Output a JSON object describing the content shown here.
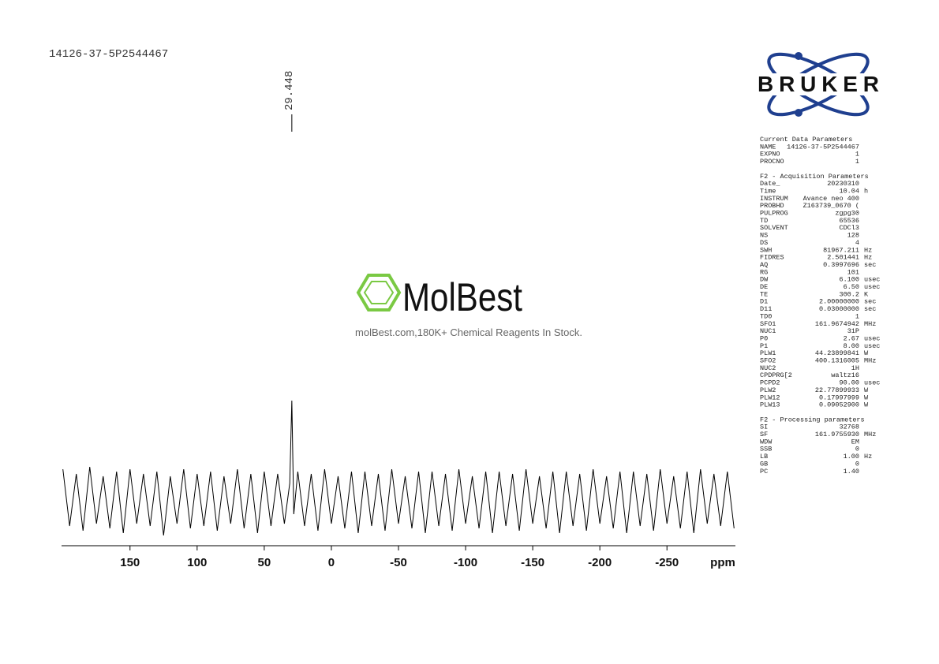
{
  "header": {
    "sample": "14126-37-5P2544467"
  },
  "logo": "BRUKER",
  "watermark": {
    "brand": "MolBest",
    "tagline": "molBest.com,180K+ Chemical Reagents In Stock."
  },
  "parameters": {
    "groups": [
      {
        "title": "Current Data Parameters",
        "rows": [
          {
            "name": "NAME",
            "value": "14126-37-5P2544467"
          },
          {
            "name": "EXPNO",
            "value": "1"
          },
          {
            "name": "PROCNO",
            "value": "1"
          }
        ]
      },
      {
        "title": "F2 - Acquisition Parameters",
        "rows": [
          {
            "name": "Date_",
            "value": "20230310"
          },
          {
            "name": "Time",
            "value": "10.04",
            "unit": "h"
          },
          {
            "name": "INSTRUM",
            "value": "Avance neo 400"
          },
          {
            "name": "PROBHD",
            "value": "Z163739_0670 ("
          },
          {
            "name": "PULPROG",
            "value": "zgpg30"
          },
          {
            "name": "TD",
            "value": "65536"
          },
          {
            "name": "SOLVENT",
            "value": "CDCl3"
          },
          {
            "name": "NS",
            "value": "128"
          },
          {
            "name": "DS",
            "value": "4"
          },
          {
            "name": "SWH",
            "value": "81967.211",
            "unit": "Hz"
          },
          {
            "name": "FIDRES",
            "value": "2.501441",
            "unit": "Hz"
          },
          {
            "name": "AQ",
            "value": "0.3997696",
            "unit": "sec"
          },
          {
            "name": "RG",
            "value": "101"
          },
          {
            "name": "DW",
            "value": "6.100",
            "unit": "usec"
          },
          {
            "name": "DE",
            "value": "6.50",
            "unit": "usec"
          },
          {
            "name": "TE",
            "value": "300.2",
            "unit": "K"
          },
          {
            "name": "D1",
            "value": "2.00000000",
            "unit": "sec"
          },
          {
            "name": "D11",
            "value": "0.03000000",
            "unit": "sec"
          },
          {
            "name": "TD0",
            "value": "1"
          },
          {
            "name": "SFO1",
            "value": "161.9674942",
            "unit": "MHz"
          },
          {
            "name": "NUC1",
            "value": "31P"
          },
          {
            "name": "P0",
            "value": "2.67",
            "unit": "usec"
          },
          {
            "name": "P1",
            "value": "8.00",
            "unit": "usec"
          },
          {
            "name": "PLW1",
            "value": "44.23899841",
            "unit": "W"
          },
          {
            "name": "SFO2",
            "value": "400.1316005",
            "unit": "MHz"
          },
          {
            "name": "NUC2",
            "value": "1H"
          },
          {
            "name": "CPDPRG[2",
            "value": "waltz16"
          },
          {
            "name": "PCPD2",
            "value": "90.00",
            "unit": "usec"
          },
          {
            "name": "PLW2",
            "value": "22.77899933",
            "unit": "W"
          },
          {
            "name": "PLW12",
            "value": "0.17997999",
            "unit": "W"
          },
          {
            "name": "PLW13",
            "value": "0.09052900",
            "unit": "W"
          }
        ]
      },
      {
        "title": "F2 - Processing parameters",
        "rows": [
          {
            "name": "SI",
            "value": "32768"
          },
          {
            "name": "SF",
            "value": "161.9755930",
            "unit": "MHz"
          },
          {
            "name": "WDW",
            "value": "EM"
          },
          {
            "name": "SSB",
            "value": "0"
          },
          {
            "name": "LB",
            "value": "1.00",
            "unit": "Hz"
          },
          {
            "name": "GB",
            "value": "0"
          },
          {
            "name": "PC",
            "value": "1.40"
          }
        ]
      }
    ]
  },
  "chart_data": {
    "type": "line",
    "x_label": "ppm",
    "color": "#000000",
    "xlim": [
      201,
      -301
    ],
    "ylim": [
      -2.4,
      4.6
    ],
    "xticks": [
      150,
      100,
      50,
      0,
      -50,
      -100,
      -150,
      -200,
      -250
    ],
    "peaks": [
      29.448
    ],
    "x": [
      200,
      195,
      190,
      185,
      180,
      175,
      170,
      165,
      160,
      155,
      150,
      145,
      140,
      135,
      130,
      125,
      120,
      115,
      110,
      105,
      100,
      95,
      90,
      85,
      80,
      75,
      70,
      65,
      60,
      55,
      50,
      45,
      40,
      35,
      31,
      29.448,
      28,
      25,
      20,
      15,
      10,
      5,
      0,
      -5,
      -10,
      -15,
      -20,
      -25,
      -30,
      -35,
      -40,
      -45,
      -50,
      -55,
      -60,
      -65,
      -70,
      -75,
      -80,
      -85,
      -90,
      -95,
      -100,
      -105,
      -110,
      -115,
      -120,
      -125,
      -130,
      -135,
      -140,
      -145,
      -150,
      -155,
      -160,
      -165,
      -170,
      -175,
      -180,
      -185,
      -190,
      -195,
      -200,
      -205,
      -210,
      -215,
      -220,
      -225,
      -230,
      -235,
      -240,
      -245,
      -250,
      -255,
      -260,
      -265,
      -270,
      -275,
      -280,
      -285,
      -290,
      -295,
      -300
    ],
    "values": [
      1.1,
      -1.3,
      0.9,
      -1.5,
      1.2,
      -1.2,
      0.8,
      -1.4,
      1.0,
      -1.6,
      1.1,
      -1.2,
      0.9,
      -1.3,
      1.0,
      -1.7,
      0.8,
      -1.2,
      1.1,
      -1.4,
      0.9,
      -1.3,
      1.0,
      -1.5,
      0.8,
      -1.2,
      1.1,
      -1.4,
      0.9,
      -1.6,
      1.0,
      -1.3,
      0.9,
      -1.2,
      0.5,
      4,
      -0.8,
      1.0,
      -1.3,
      0.9,
      -1.5,
      1.1,
      -1.2,
      0.8,
      -1.4,
      1.0,
      -1.6,
      1.0,
      -1.3,
      0.9,
      -1.5,
      1.1,
      -1.2,
      0.8,
      -1.4,
      1.0,
      -1.6,
      1.0,
      -1.3,
      0.9,
      -1.5,
      1.1,
      -1.2,
      0.8,
      -1.4,
      1.0,
      -1.6,
      1.0,
      -1.3,
      0.9,
      -1.5,
      1.1,
      -1.2,
      0.8,
      -1.4,
      1.0,
      -1.6,
      1.0,
      -1.3,
      0.9,
      -1.5,
      1.1,
      -1.2,
      0.8,
      -1.4,
      1.0,
      -1.6,
      1.0,
      -1.3,
      0.9,
      -1.5,
      1.1,
      -1.2,
      0.8,
      -1.4,
      1.0,
      -1.6,
      1.1,
      -1.2,
      0.9,
      -1.3,
      1.0,
      -1.4
    ]
  }
}
